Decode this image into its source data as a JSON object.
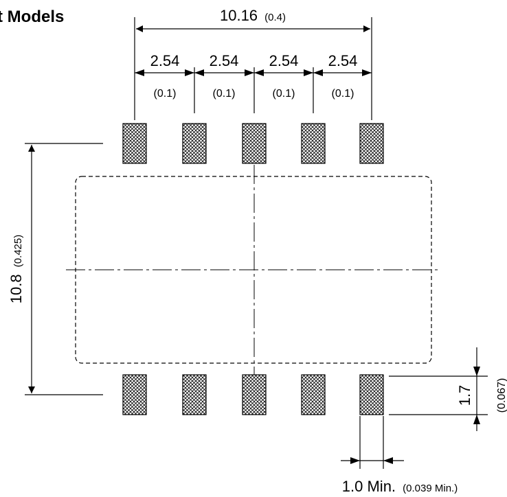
{
  "title": "t Models",
  "dims": {
    "overall_width": {
      "main": "10.16",
      "sub": "(0.4)"
    },
    "pitch": [
      {
        "main": "2.54",
        "sub": "(0.1)"
      },
      {
        "main": "2.54",
        "sub": "(0.1)"
      },
      {
        "main": "2.54",
        "sub": "(0.1)"
      },
      {
        "main": "2.54",
        "sub": "(0.1)"
      }
    ],
    "overall_height": {
      "main": "10.8",
      "sub": "(0.425)"
    },
    "pad_length": {
      "main": "1.7",
      "sub": "(0.067)"
    },
    "pad_width": {
      "main": "1.0 Min.",
      "sub": "(0.039 Min.)"
    }
  },
  "colors": {
    "line": "#000000",
    "pad_fill": "#ffffff"
  }
}
